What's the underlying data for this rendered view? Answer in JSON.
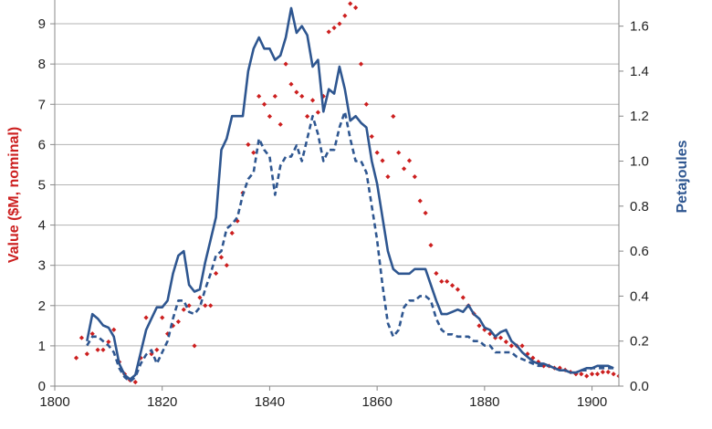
{
  "chart_data": {
    "type": "line",
    "title": "",
    "xlabel": "",
    "ylabel_left": "Value ($M, nominal)",
    "ylabel_right": "Petajoules",
    "xlim": [
      1800,
      1905
    ],
    "ylim_left": [
      0,
      9.5
    ],
    "ylim_right": [
      0,
      1.7
    ],
    "x_ticks": [
      1800,
      1820,
      1840,
      1860,
      1880,
      1900
    ],
    "y_left_ticks": [
      0,
      1,
      2,
      3,
      4,
      5,
      6,
      7,
      8,
      9
    ],
    "y_right_ticks": [
      "0.0",
      "0.2",
      "0.4",
      "0.6",
      "0.8",
      "1.0",
      "1.2",
      "1.4",
      "1.6"
    ],
    "grid": "horizontal",
    "colors": {
      "value": "#cc1f1f",
      "energy": "#2e5690",
      "left_axis_title": "#cc1f1f",
      "right_axis_title": "#2e5690",
      "grid": "#b3b3b3"
    },
    "series": [
      {
        "axis": "left",
        "style": "scatter",
        "x": [
          1804,
          1805,
          1806,
          1807,
          1808,
          1809,
          1810,
          1811,
          1812,
          1813,
          1814,
          1815,
          1816,
          1817,
          1818,
          1819,
          1820,
          1821,
          1822,
          1823,
          1824,
          1825,
          1826,
          1827,
          1828,
          1829,
          1830,
          1831,
          1832,
          1833,
          1834,
          1835,
          1836,
          1837,
          1838,
          1839,
          1840,
          1841,
          1842,
          1843,
          1844,
          1845,
          1846,
          1847,
          1848,
          1849,
          1850,
          1851,
          1852,
          1853,
          1854,
          1855,
          1856,
          1857,
          1858,
          1859,
          1860,
          1861,
          1862,
          1863,
          1864,
          1865,
          1866,
          1867,
          1868,
          1869,
          1870,
          1871,
          1872,
          1873,
          1874,
          1875,
          1876,
          1877,
          1878,
          1879,
          1880,
          1881,
          1882,
          1883,
          1884,
          1885,
          1886,
          1887,
          1888,
          1889,
          1890,
          1891,
          1892,
          1893,
          1894,
          1895,
          1896,
          1897,
          1898,
          1899,
          1900,
          1901,
          1902,
          1903,
          1904,
          1905
        ],
        "y": [
          0.7,
          1.2,
          0.8,
          1.3,
          0.9,
          0.9,
          1.1,
          1.4,
          0.6,
          0.3,
          0.15,
          0.1,
          0.7,
          1.7,
          0.8,
          0.9,
          1.7,
          1.3,
          1.5,
          1.6,
          1.9,
          2.0,
          1.0,
          2.2,
          2.0,
          2.0,
          2.8,
          3.2,
          3.0,
          3.8,
          4.1,
          4.8,
          6.0,
          5.8,
          7.2,
          7.0,
          6.7,
          7.2,
          6.5,
          8.0,
          7.5,
          7.3,
          7.2,
          6.7,
          7.1,
          6.8,
          7.2,
          8.8,
          8.9,
          9.0,
          9.2,
          9.5,
          9.4,
          8.0,
          7.0,
          6.2,
          5.8,
          5.6,
          5.2,
          6.7,
          5.8,
          5.4,
          5.6,
          5.2,
          4.6,
          4.3,
          3.5,
          2.8,
          2.6,
          2.6,
          2.5,
          2.4,
          2.2,
          2.0,
          1.8,
          1.5,
          1.4,
          1.3,
          1.2,
          1.2,
          1.1,
          1.0,
          1.0,
          1.0,
          0.8,
          0.7,
          0.6,
          0.5,
          0.5,
          0.45,
          0.45,
          0.4,
          0.35,
          0.3,
          0.3,
          0.25,
          0.3,
          0.3,
          0.35,
          0.35,
          0.3,
          0.25
        ]
      },
      {
        "axis": "right",
        "style": "solid",
        "x": [
          1806,
          1807,
          1808,
          1809,
          1810,
          1811,
          1812,
          1813,
          1814,
          1815,
          1816,
          1817,
          1818,
          1819,
          1820,
          1821,
          1822,
          1823,
          1824,
          1825,
          1826,
          1827,
          1828,
          1829,
          1830,
          1831,
          1832,
          1833,
          1834,
          1835,
          1836,
          1837,
          1838,
          1839,
          1840,
          1841,
          1842,
          1843,
          1844,
          1845,
          1846,
          1847,
          1848,
          1849,
          1850,
          1851,
          1852,
          1853,
          1854,
          1855,
          1856,
          1857,
          1858,
          1859,
          1860,
          1861,
          1862,
          1863,
          1864,
          1865,
          1866,
          1867,
          1868,
          1869,
          1870,
          1871,
          1872,
          1873,
          1874,
          1875,
          1876,
          1877,
          1878,
          1879,
          1880,
          1881,
          1882,
          1883,
          1884,
          1885,
          1886,
          1887,
          1888,
          1889,
          1890,
          1891,
          1892,
          1893,
          1894,
          1895,
          1896,
          1897,
          1898,
          1899,
          1900,
          1901,
          1902,
          1903,
          1904
        ],
        "y": [
          0.2,
          0.32,
          0.3,
          0.27,
          0.26,
          0.22,
          0.1,
          0.05,
          0.03,
          0.05,
          0.15,
          0.25,
          0.3,
          0.35,
          0.35,
          0.38,
          0.5,
          0.58,
          0.6,
          0.45,
          0.42,
          0.43,
          0.55,
          0.65,
          0.75,
          1.05,
          1.1,
          1.2,
          1.2,
          1.2,
          1.4,
          1.5,
          1.55,
          1.5,
          1.5,
          1.45,
          1.47,
          1.55,
          1.68,
          1.57,
          1.6,
          1.56,
          1.42,
          1.45,
          1.22,
          1.32,
          1.3,
          1.42,
          1.32,
          1.18,
          1.2,
          1.17,
          1.15,
          1.0,
          0.9,
          0.75,
          0.6,
          0.52,
          0.5,
          0.5,
          0.5,
          0.52,
          0.52,
          0.52,
          0.45,
          0.38,
          0.32,
          0.32,
          0.33,
          0.34,
          0.33,
          0.36,
          0.32,
          0.3,
          0.26,
          0.25,
          0.22,
          0.24,
          0.25,
          0.2,
          0.18,
          0.15,
          0.13,
          0.11,
          0.1,
          0.1,
          0.09,
          0.08,
          0.07,
          0.07,
          0.06,
          0.06,
          0.07,
          0.08,
          0.08,
          0.09,
          0.09,
          0.09,
          0.08
        ]
      },
      {
        "axis": "right",
        "style": "dashed",
        "x": [
          1806,
          1807,
          1808,
          1809,
          1810,
          1811,
          1812,
          1813,
          1814,
          1815,
          1816,
          1817,
          1818,
          1819,
          1820,
          1821,
          1822,
          1823,
          1824,
          1825,
          1826,
          1827,
          1828,
          1829,
          1830,
          1831,
          1832,
          1833,
          1834,
          1835,
          1836,
          1837,
          1838,
          1839,
          1840,
          1841,
          1842,
          1843,
          1844,
          1845,
          1846,
          1847,
          1848,
          1849,
          1850,
          1851,
          1852,
          1853,
          1854,
          1855,
          1856,
          1857,
          1858,
          1859,
          1860,
          1861,
          1862,
          1863,
          1864,
          1865,
          1866,
          1867,
          1868,
          1869,
          1870,
          1871,
          1872,
          1873,
          1874,
          1875,
          1876,
          1877,
          1878,
          1879,
          1880,
          1881,
          1882,
          1883,
          1884,
          1885,
          1886,
          1887,
          1888,
          1889,
          1890,
          1891,
          1892,
          1893,
          1894,
          1895,
          1896,
          1897,
          1898,
          1899,
          1900,
          1901,
          1902,
          1903,
          1904
        ],
        "y": [
          0.18,
          0.22,
          0.22,
          0.2,
          0.18,
          0.15,
          0.08,
          0.04,
          0.02,
          0.04,
          0.1,
          0.14,
          0.16,
          0.1,
          0.15,
          0.2,
          0.3,
          0.38,
          0.38,
          0.33,
          0.32,
          0.35,
          0.43,
          0.5,
          0.58,
          0.6,
          0.7,
          0.72,
          0.75,
          0.85,
          0.92,
          0.95,
          1.1,
          1.05,
          1.02,
          0.85,
          0.98,
          1.02,
          1.02,
          1.07,
          1.0,
          1.1,
          1.2,
          1.12,
          1.0,
          1.05,
          1.05,
          1.15,
          1.22,
          1.1,
          1.0,
          1.0,
          0.95,
          0.8,
          0.65,
          0.45,
          0.28,
          0.22,
          0.25,
          0.35,
          0.38,
          0.38,
          0.4,
          0.4,
          0.38,
          0.3,
          0.25,
          0.23,
          0.23,
          0.22,
          0.22,
          0.22,
          0.2,
          0.2,
          0.18,
          0.18,
          0.15,
          0.15,
          0.15,
          0.15,
          0.13,
          0.12,
          0.11,
          0.1,
          0.09,
          0.09,
          0.09,
          0.08,
          0.07,
          0.07,
          0.06,
          0.06,
          0.07,
          0.07,
          0.08,
          0.08,
          0.08,
          0.08,
          0.08
        ]
      }
    ]
  }
}
